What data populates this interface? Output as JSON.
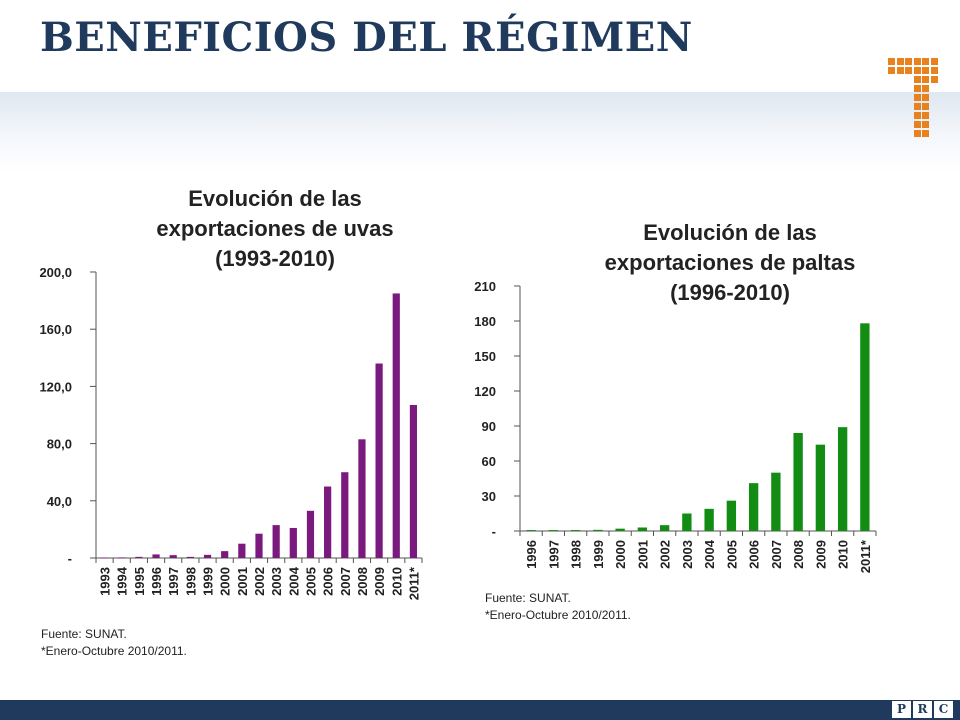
{
  "page": {
    "title": "BENEFICIOS DEL RÉGIMEN"
  },
  "brand": {
    "accent_color": "#e8821e",
    "navy_color": "#1f3a5c",
    "footer_letters": [
      "P",
      "R",
      "C"
    ]
  },
  "charts": [
    {
      "source_line1": "Fuente: SUNAT.",
      "source_line2": "*Enero-Octubre 2010/2011."
    },
    {
      "source_line1": "Fuente: SUNAT.",
      "source_line2": "*Enero-Octubre 2010/2011."
    }
  ],
  "chart_data": [
    {
      "type": "bar",
      "title": "Evolución de las exportaciones de uvas (1993-2010)",
      "title_lines": [
        "Evolución de las",
        "exportaciones de uvas",
        "(1993-2010)"
      ],
      "color": "#7b1a7e",
      "categories": [
        "1993",
        "1994",
        "1995",
        "1996",
        "1997",
        "1998",
        "1999",
        "2000",
        "2001",
        "2002",
        "2003",
        "2004",
        "2005",
        "2006",
        "2007",
        "2008",
        "2009",
        "2010",
        "2011*"
      ],
      "values": [
        0.3,
        0.4,
        0.8,
        2.5,
        2.0,
        0.8,
        2.2,
        4.8,
        10.0,
        17.0,
        23.0,
        21.0,
        33.0,
        50.0,
        60.0,
        83.0,
        136.0,
        185.0,
        107.0
      ],
      "ylim": [
        0,
        200
      ],
      "yticks": [
        0,
        40,
        80,
        120,
        160,
        200
      ],
      "ytick_labels": [
        "-",
        "40,0",
        "80,0",
        "120,0",
        "160,0",
        "200,0"
      ],
      "xlabel": "",
      "ylabel": "",
      "grid": false
    },
    {
      "type": "bar",
      "title": "Evolución de las exportaciones de paltas (1996-2010)",
      "title_lines": [
        "Evolución de las",
        "exportaciones de paltas",
        "(1996-2010)"
      ],
      "color": "#138c13",
      "categories": [
        "1996",
        "1997",
        "1998",
        "1999",
        "2000",
        "2001",
        "2002",
        "2003",
        "2004",
        "2005",
        "2006",
        "2007",
        "2008",
        "2009",
        "2010",
        "2011*"
      ],
      "values": [
        0.8,
        0.8,
        0.8,
        1.0,
        2.0,
        3.0,
        5.0,
        15.0,
        19.0,
        26.0,
        41.0,
        50.0,
        84.0,
        74.0,
        89.0,
        178.0
      ],
      "ylim": [
        0,
        210
      ],
      "yticks": [
        0,
        30,
        60,
        90,
        120,
        150,
        180,
        210
      ],
      "ytick_labels": [
        "-",
        "30",
        "60",
        "90",
        "120",
        "150",
        "180",
        "210"
      ],
      "xlabel": "",
      "ylabel": "",
      "grid": false
    }
  ]
}
